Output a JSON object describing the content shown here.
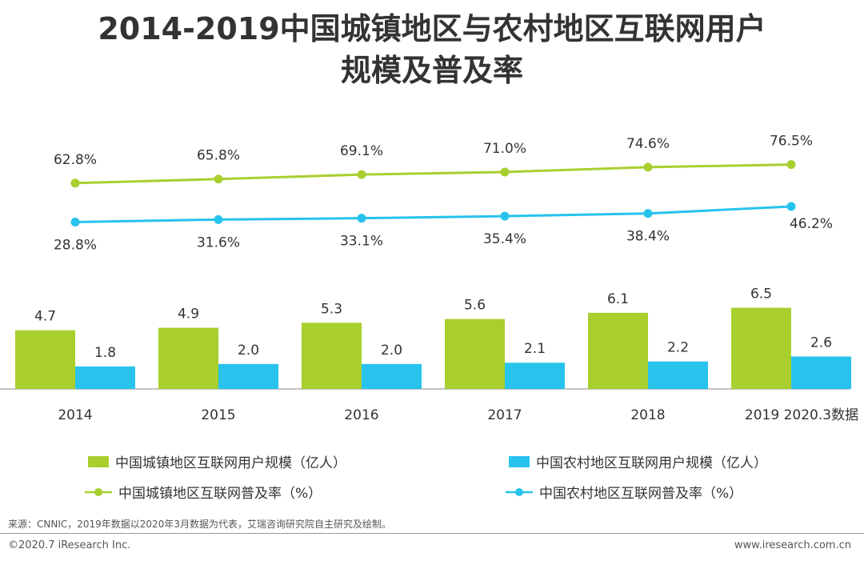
{
  "title": {
    "line1": "2014-2019中国城镇地区与农村地区互联网用户",
    "line2": "规模及普及率"
  },
  "colors": {
    "urban": "#A8CF2E",
    "rural": "#27C3EC",
    "axis": "#888888",
    "text": "#333333"
  },
  "chart_data": {
    "type": "bar",
    "categories": [
      "2014",
      "2015",
      "2016",
      "2017",
      "2018",
      "2019 2020.3数据"
    ],
    "series": [
      {
        "name": "中国城镇地区互联网用户规模（亿人）",
        "type": "bar",
        "values": [
          4.7,
          4.9,
          5.3,
          5.6,
          6.1,
          6.5
        ],
        "labels": [
          "4.7",
          "4.9",
          "5.3",
          "5.6",
          "6.1",
          "6.5"
        ]
      },
      {
        "name": "中国农村地区互联网用户规模（亿人）",
        "type": "bar",
        "values": [
          1.8,
          2.0,
          2.0,
          2.1,
          2.2,
          2.6
        ],
        "labels": [
          "1.8",
          "2.0",
          "2.0",
          "2.1",
          "2.2",
          "2.6"
        ]
      },
      {
        "name": "中国城镇地区互联网普及率（%）",
        "type": "line",
        "values": [
          62.8,
          65.8,
          69.1,
          71.0,
          74.6,
          76.5
        ],
        "labels": [
          "62.8%",
          "65.8%",
          "69.1%",
          "71.0%",
          "74.6%",
          "76.5%"
        ]
      },
      {
        "name": "中国农村地区互联网普及率（%）",
        "type": "line",
        "values": [
          28.8,
          31.6,
          33.1,
          35.4,
          38.4,
          46.2
        ],
        "labels": [
          "28.8%",
          "31.6%",
          "33.1%",
          "35.4%",
          "38.4%",
          "46.2%"
        ]
      }
    ]
  },
  "footer": {
    "source": "来源：CNNIC，2019年数据以2020年3月数据为代表，艾瑞咨询研究院自主研究及绘制。",
    "copyright": "©2020.7 iResearch Inc.",
    "website": "www.iresearch.com.cn"
  }
}
